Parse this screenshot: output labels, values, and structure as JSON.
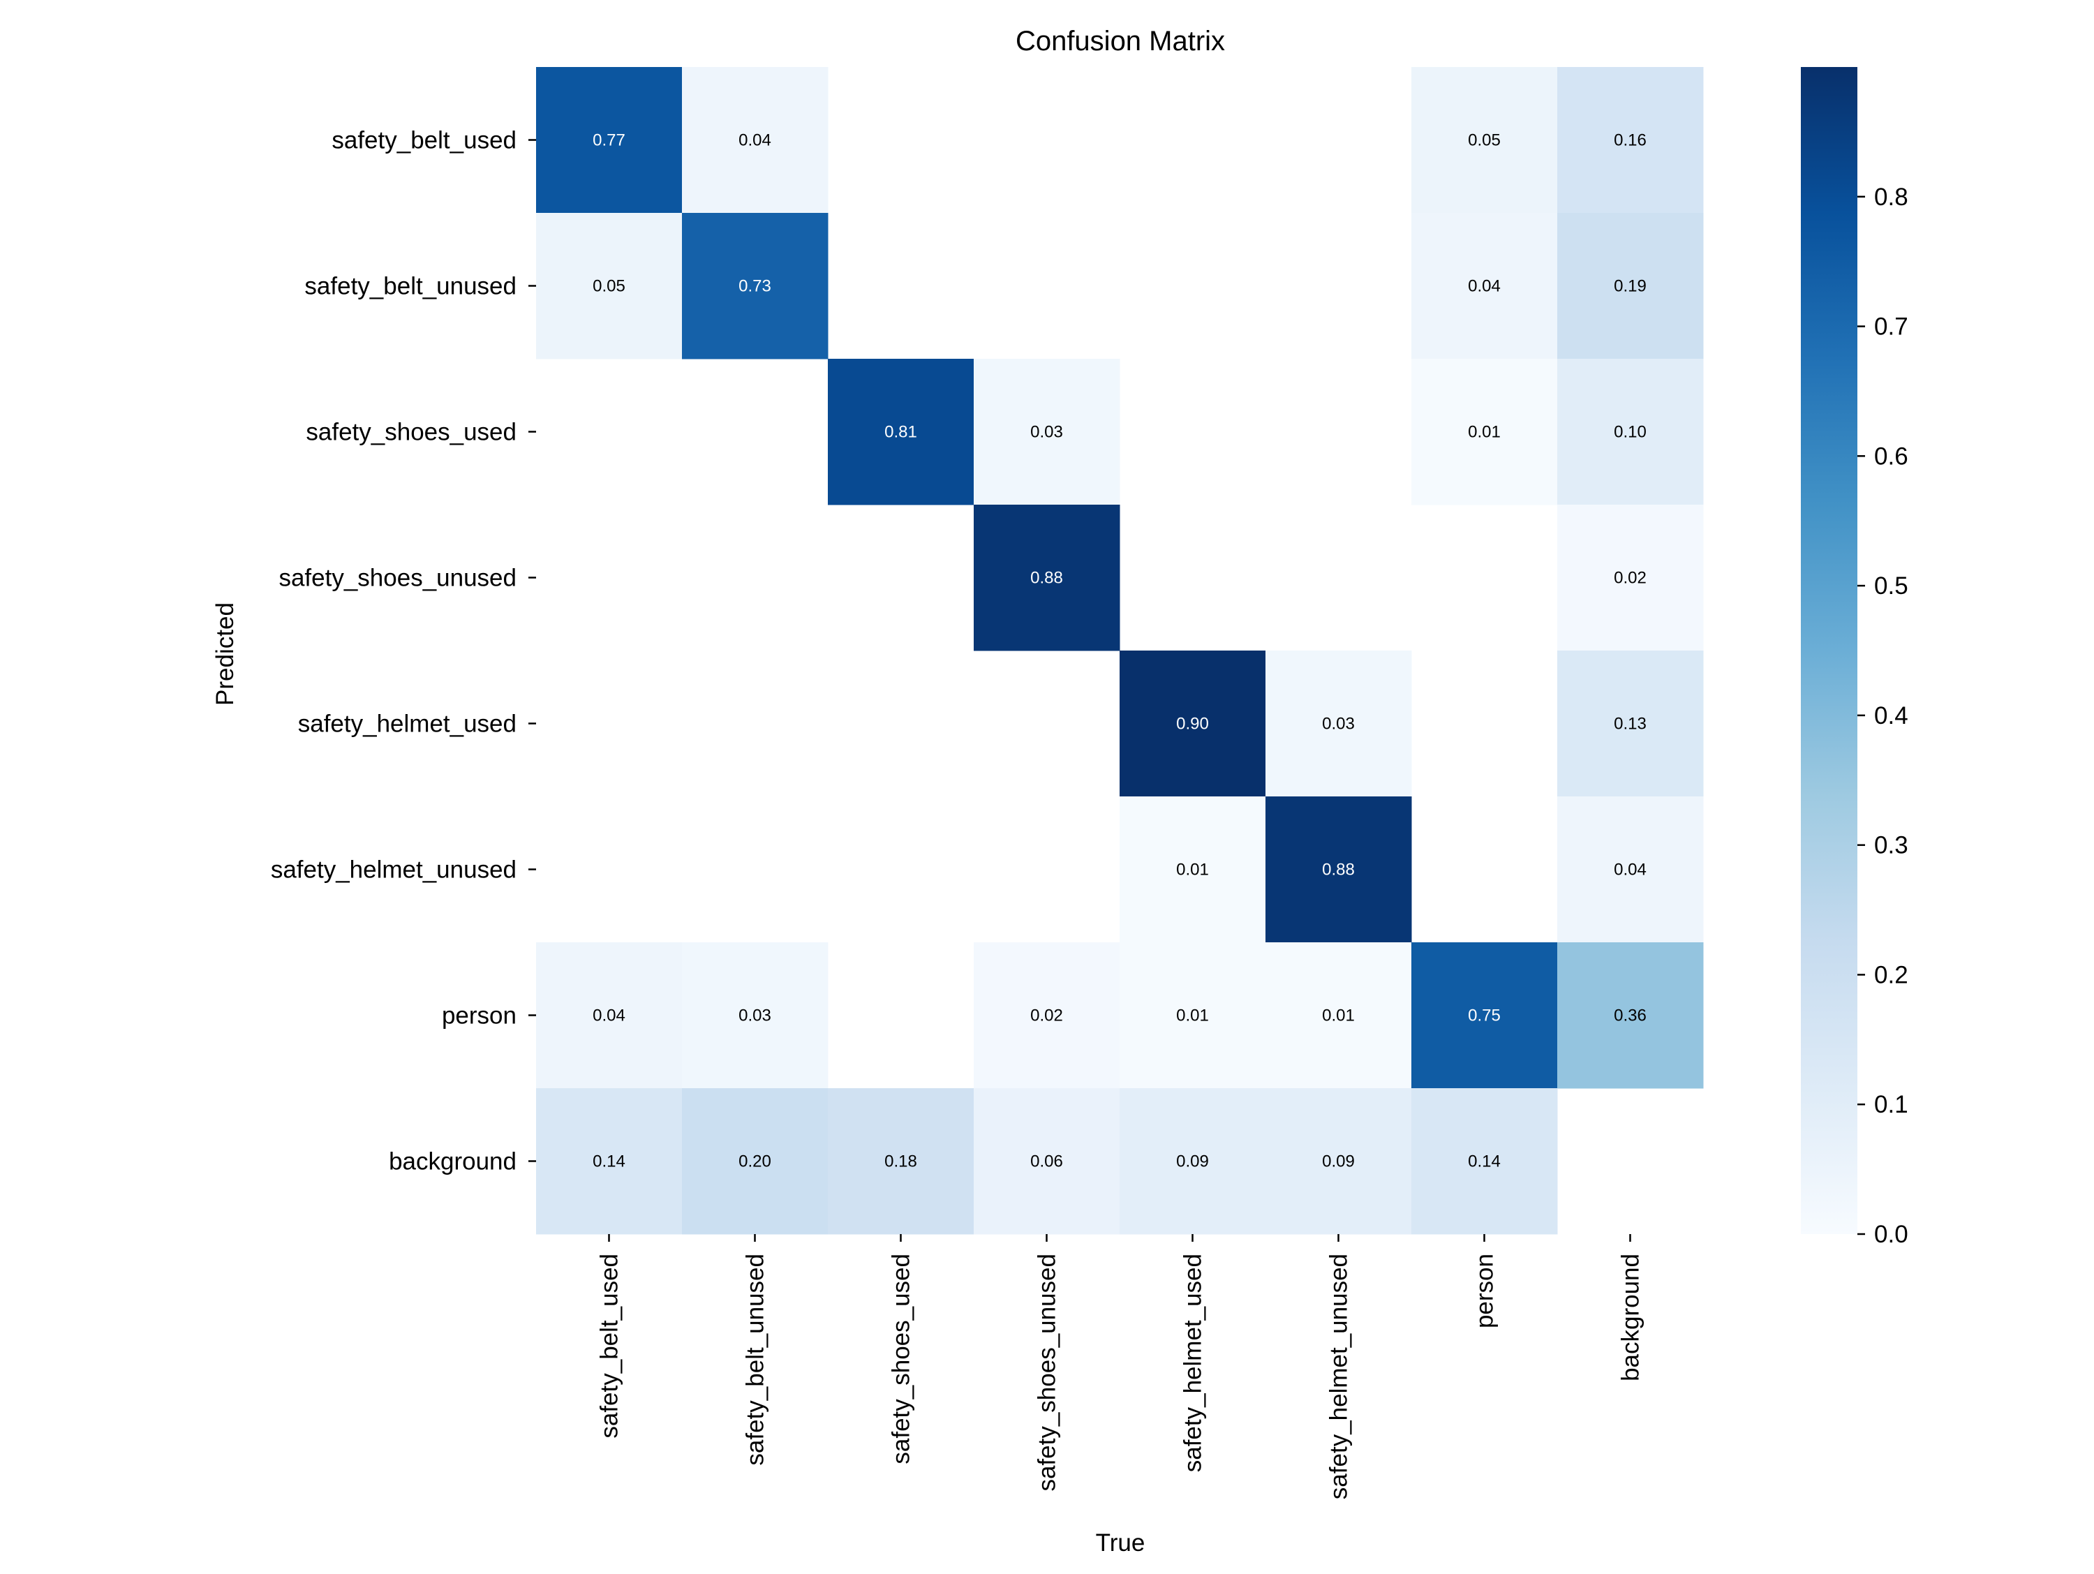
{
  "chart_data": {
    "type": "heatmap",
    "title": "Confusion Matrix",
    "xlabel": "True",
    "ylabel": "Predicted",
    "x_categories": [
      "safety_belt_used",
      "safety_belt_unused",
      "safety_shoes_used",
      "safety_shoes_unused",
      "safety_helmet_used",
      "safety_helmet_unused",
      "person",
      "background"
    ],
    "y_categories": [
      "safety_belt_used",
      "safety_belt_unused",
      "safety_shoes_used",
      "safety_shoes_unused",
      "safety_helmet_used",
      "safety_helmet_unused",
      "person",
      "background"
    ],
    "matrix": [
      [
        0.77,
        0.04,
        null,
        null,
        null,
        null,
        0.05,
        0.16
      ],
      [
        0.05,
        0.73,
        null,
        null,
        null,
        null,
        0.04,
        0.19
      ],
      [
        null,
        null,
        0.81,
        0.03,
        null,
        null,
        0.01,
        0.1
      ],
      [
        null,
        null,
        null,
        0.88,
        null,
        null,
        null,
        0.02
      ],
      [
        null,
        null,
        null,
        null,
        0.9,
        0.03,
        null,
        0.13
      ],
      [
        null,
        null,
        null,
        null,
        0.01,
        0.88,
        null,
        0.04
      ],
      [
        0.04,
        0.03,
        null,
        0.02,
        0.01,
        0.01,
        0.75,
        0.36
      ],
      [
        0.14,
        0.2,
        0.18,
        0.06,
        0.09,
        0.09,
        0.14,
        null
      ]
    ],
    "value_format": "0.00",
    "colormap": "Blues",
    "colormap_stops": [
      "#f7fbff",
      "#deebf7",
      "#c6dbef",
      "#9ecae1",
      "#6baed6",
      "#4292c6",
      "#2171b5",
      "#08519c",
      "#08306b"
    ],
    "color_range": [
      0,
      0.9
    ],
    "colorbar_ticks": [
      0.0,
      0.1,
      0.2,
      0.3,
      0.4,
      0.5,
      0.6,
      0.7,
      0.8
    ],
    "colorbar_tick_labels": [
      "0.0",
      "0.1",
      "0.2",
      "0.3",
      "0.4",
      "0.5",
      "0.6",
      "0.7",
      "0.8"
    ]
  }
}
